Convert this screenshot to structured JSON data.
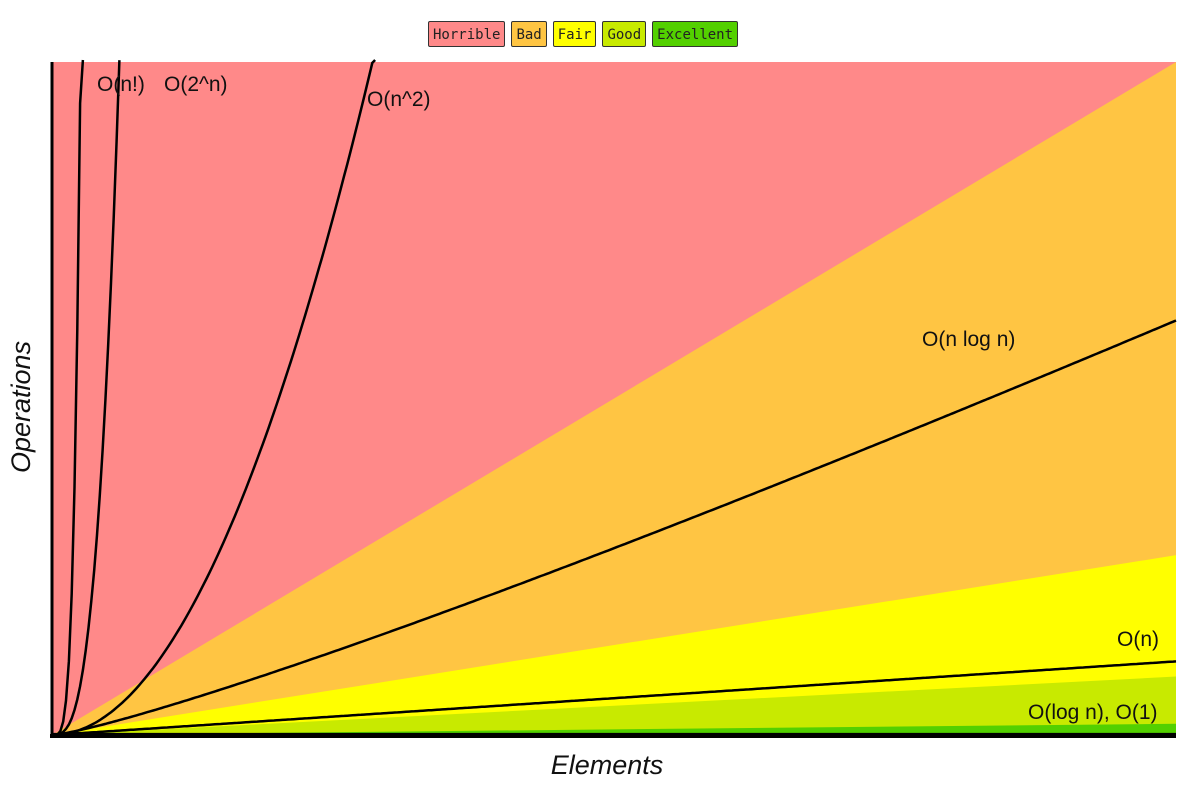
{
  "legend": [
    {
      "label": "Horrible",
      "color": "#ff8989"
    },
    {
      "label": "Bad",
      "color": "#ffc543"
    },
    {
      "label": "Fair",
      "color": "#ffff00"
    },
    {
      "label": "Good",
      "color": "#c8ea00"
    },
    {
      "label": "Excellent",
      "color": "#53d000"
    }
  ],
  "chart_data": {
    "type": "area",
    "title": "",
    "xlabel": "Elements",
    "ylabel": "Operations",
    "grid": false,
    "legend_position": "top-center",
    "regions": [
      {
        "name": "Horrible",
        "color": "#ff8989",
        "upper_slope": null
      },
      {
        "name": "Bad",
        "color": "#ffc543",
        "upper_slope": 0.6
      },
      {
        "name": "Fair",
        "color": "#ffff00",
        "upper_slope": 0.16
      },
      {
        "name": "Good",
        "color": "#c8ea00",
        "upper_slope": 0.052
      },
      {
        "name": "Excellent",
        "color": "#53d000",
        "upper_slope": 0.01
      }
    ],
    "series": [
      {
        "name": "O(n!)",
        "fn": "factorial"
      },
      {
        "name": "O(2^n)",
        "fn": "exponential"
      },
      {
        "name": "O(n^2)",
        "fn": "quadratic"
      },
      {
        "name": "O(n log n)",
        "fn": "nlogn"
      },
      {
        "name": "O(n)",
        "fn": "linear"
      },
      {
        "name": "O(log n), O(1)",
        "fn": "constant"
      }
    ]
  }
}
